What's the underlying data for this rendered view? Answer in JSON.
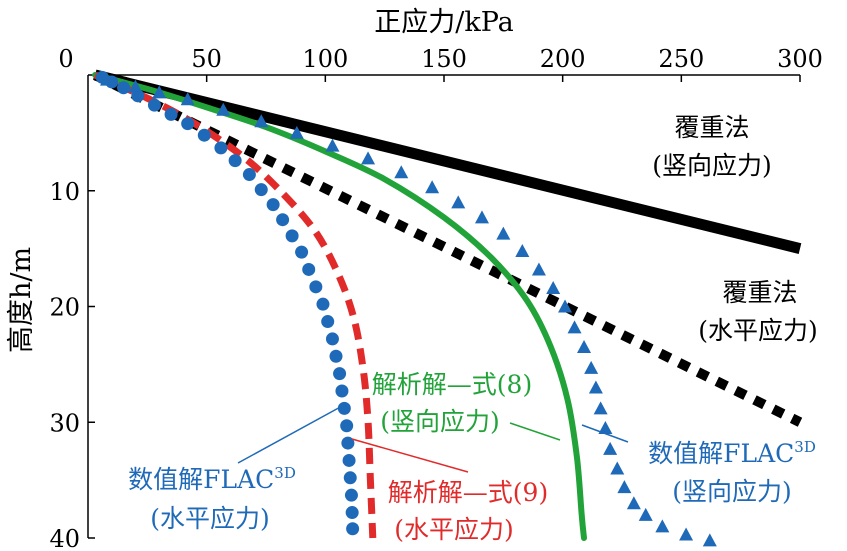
{
  "chart_data": {
    "type": "line",
    "title": "",
    "xlabel": "正应力/kPa",
    "ylabel": "高度h/m",
    "xlim": [
      0,
      300
    ],
    "ylim": [
      0,
      40
    ],
    "x_axis_position": "top",
    "y_inverted": true,
    "x_ticks": [
      "0",
      "50",
      "100",
      "150",
      "200",
      "250",
      "300"
    ],
    "y_ticks": [
      "10",
      "20",
      "30",
      "40"
    ],
    "grid": false,
    "series": [
      {
        "id": "overburden-vertical",
        "label_lines": [
          "覆重法",
          "(竖向应力)"
        ],
        "color": "#000000",
        "style": "solid-thick",
        "points": [
          [
            3,
            0
          ],
          [
            300,
            15
          ]
        ]
      },
      {
        "id": "overburden-horizontal",
        "label_lines": [
          "覆重法",
          "(水平应力)"
        ],
        "color": "#000000",
        "style": "dotted-thick",
        "points": [
          [
            3,
            0
          ],
          [
            300,
            30
          ]
        ]
      },
      {
        "id": "analytical-eq8-vertical",
        "label_lines": [
          "解析解—式(8)",
          "(竖向应力)"
        ],
        "color": "#22a33a",
        "style": "solid",
        "points": [
          [
            3,
            0
          ],
          [
            25,
            1.2
          ],
          [
            50,
            2.8
          ],
          [
            75,
            4.5
          ],
          [
            100,
            6.6
          ],
          [
            125,
            9.0
          ],
          [
            150,
            12.3
          ],
          [
            170,
            15.8
          ],
          [
            185,
            19.5
          ],
          [
            195,
            23.5
          ],
          [
            202,
            28.0
          ],
          [
            206,
            33.0
          ],
          [
            208,
            38.0
          ],
          [
            209,
            40
          ]
        ]
      },
      {
        "id": "analytical-eq9-horizontal",
        "label_lines": [
          "解析解—式(9)",
          "(水平应力)"
        ],
        "color": "#e12b2b",
        "style": "dashed",
        "points": [
          [
            3,
            0
          ],
          [
            25,
            2.0
          ],
          [
            45,
            4.2
          ],
          [
            65,
            7.0
          ],
          [
            80,
            9.8
          ],
          [
            95,
            13.3
          ],
          [
            105,
            17.0
          ],
          [
            112,
            21.0
          ],
          [
            116,
            25.5
          ],
          [
            118,
            30.0
          ],
          [
            119,
            35.0
          ],
          [
            120,
            40
          ]
        ]
      },
      {
        "id": "flac3d-vertical",
        "label_lines": [
          "数值解FLAC",
          "3D",
          "(竖向应力)"
        ],
        "color": "#1f6ab8",
        "style": "triangle-markers",
        "points": [
          [
            8,
            0.4
          ],
          [
            20,
            1.0
          ],
          [
            30,
            1.5
          ],
          [
            42,
            2.1
          ],
          [
            57,
            3.0
          ],
          [
            73,
            4.0
          ],
          [
            88,
            5.0
          ],
          [
            103,
            6.1
          ],
          [
            118,
            7.2
          ],
          [
            132,
            8.4
          ],
          [
            145,
            9.7
          ],
          [
            156,
            11.0
          ],
          [
            166,
            12.3
          ],
          [
            175,
            13.7
          ],
          [
            183,
            15.2
          ],
          [
            190,
            16.8
          ],
          [
            196,
            18.4
          ],
          [
            201,
            20.0
          ],
          [
            205,
            21.8
          ],
          [
            209,
            23.5
          ],
          [
            212,
            25.3
          ],
          [
            214,
            27.0
          ],
          [
            216,
            28.8
          ],
          [
            218,
            30.5
          ],
          [
            220,
            32.3
          ],
          [
            223,
            34.0
          ],
          [
            226,
            35.6
          ],
          [
            230,
            37.0
          ],
          [
            235,
            38.0
          ],
          [
            242,
            39.0
          ],
          [
            252,
            39.7
          ],
          [
            262,
            40.2
          ]
        ]
      },
      {
        "id": "flac3d-horizontal",
        "label_lines": [
          "数值解FLAC",
          "3D",
          "(水平应力)"
        ],
        "color": "#1f6ab8",
        "style": "circle-markers",
        "points": [
          [
            6,
            0.2
          ],
          [
            10,
            0.6
          ],
          [
            15,
            1.1
          ],
          [
            21,
            1.8
          ],
          [
            28,
            2.6
          ],
          [
            35,
            3.4
          ],
          [
            42,
            4.2
          ],
          [
            49,
            5.2
          ],
          [
            56,
            6.3
          ],
          [
            62,
            7.4
          ],
          [
            68,
            8.6
          ],
          [
            73,
            9.9
          ],
          [
            78,
            11.2
          ],
          [
            82,
            12.5
          ],
          [
            86,
            13.9
          ],
          [
            90,
            15.3
          ],
          [
            93,
            16.8
          ],
          [
            96,
            18.3
          ],
          [
            99,
            19.8
          ],
          [
            101,
            21.3
          ],
          [
            103,
            22.8
          ],
          [
            104.5,
            24.3
          ],
          [
            106,
            25.8
          ],
          [
            107,
            27.3
          ],
          [
            108,
            28.8
          ],
          [
            109,
            30.3
          ],
          [
            109.5,
            31.8
          ],
          [
            110,
            33.3
          ],
          [
            110.5,
            34.8
          ],
          [
            111,
            36.3
          ],
          [
            111.3,
            37.8
          ],
          [
            111.5,
            39.2
          ]
        ]
      }
    ]
  }
}
